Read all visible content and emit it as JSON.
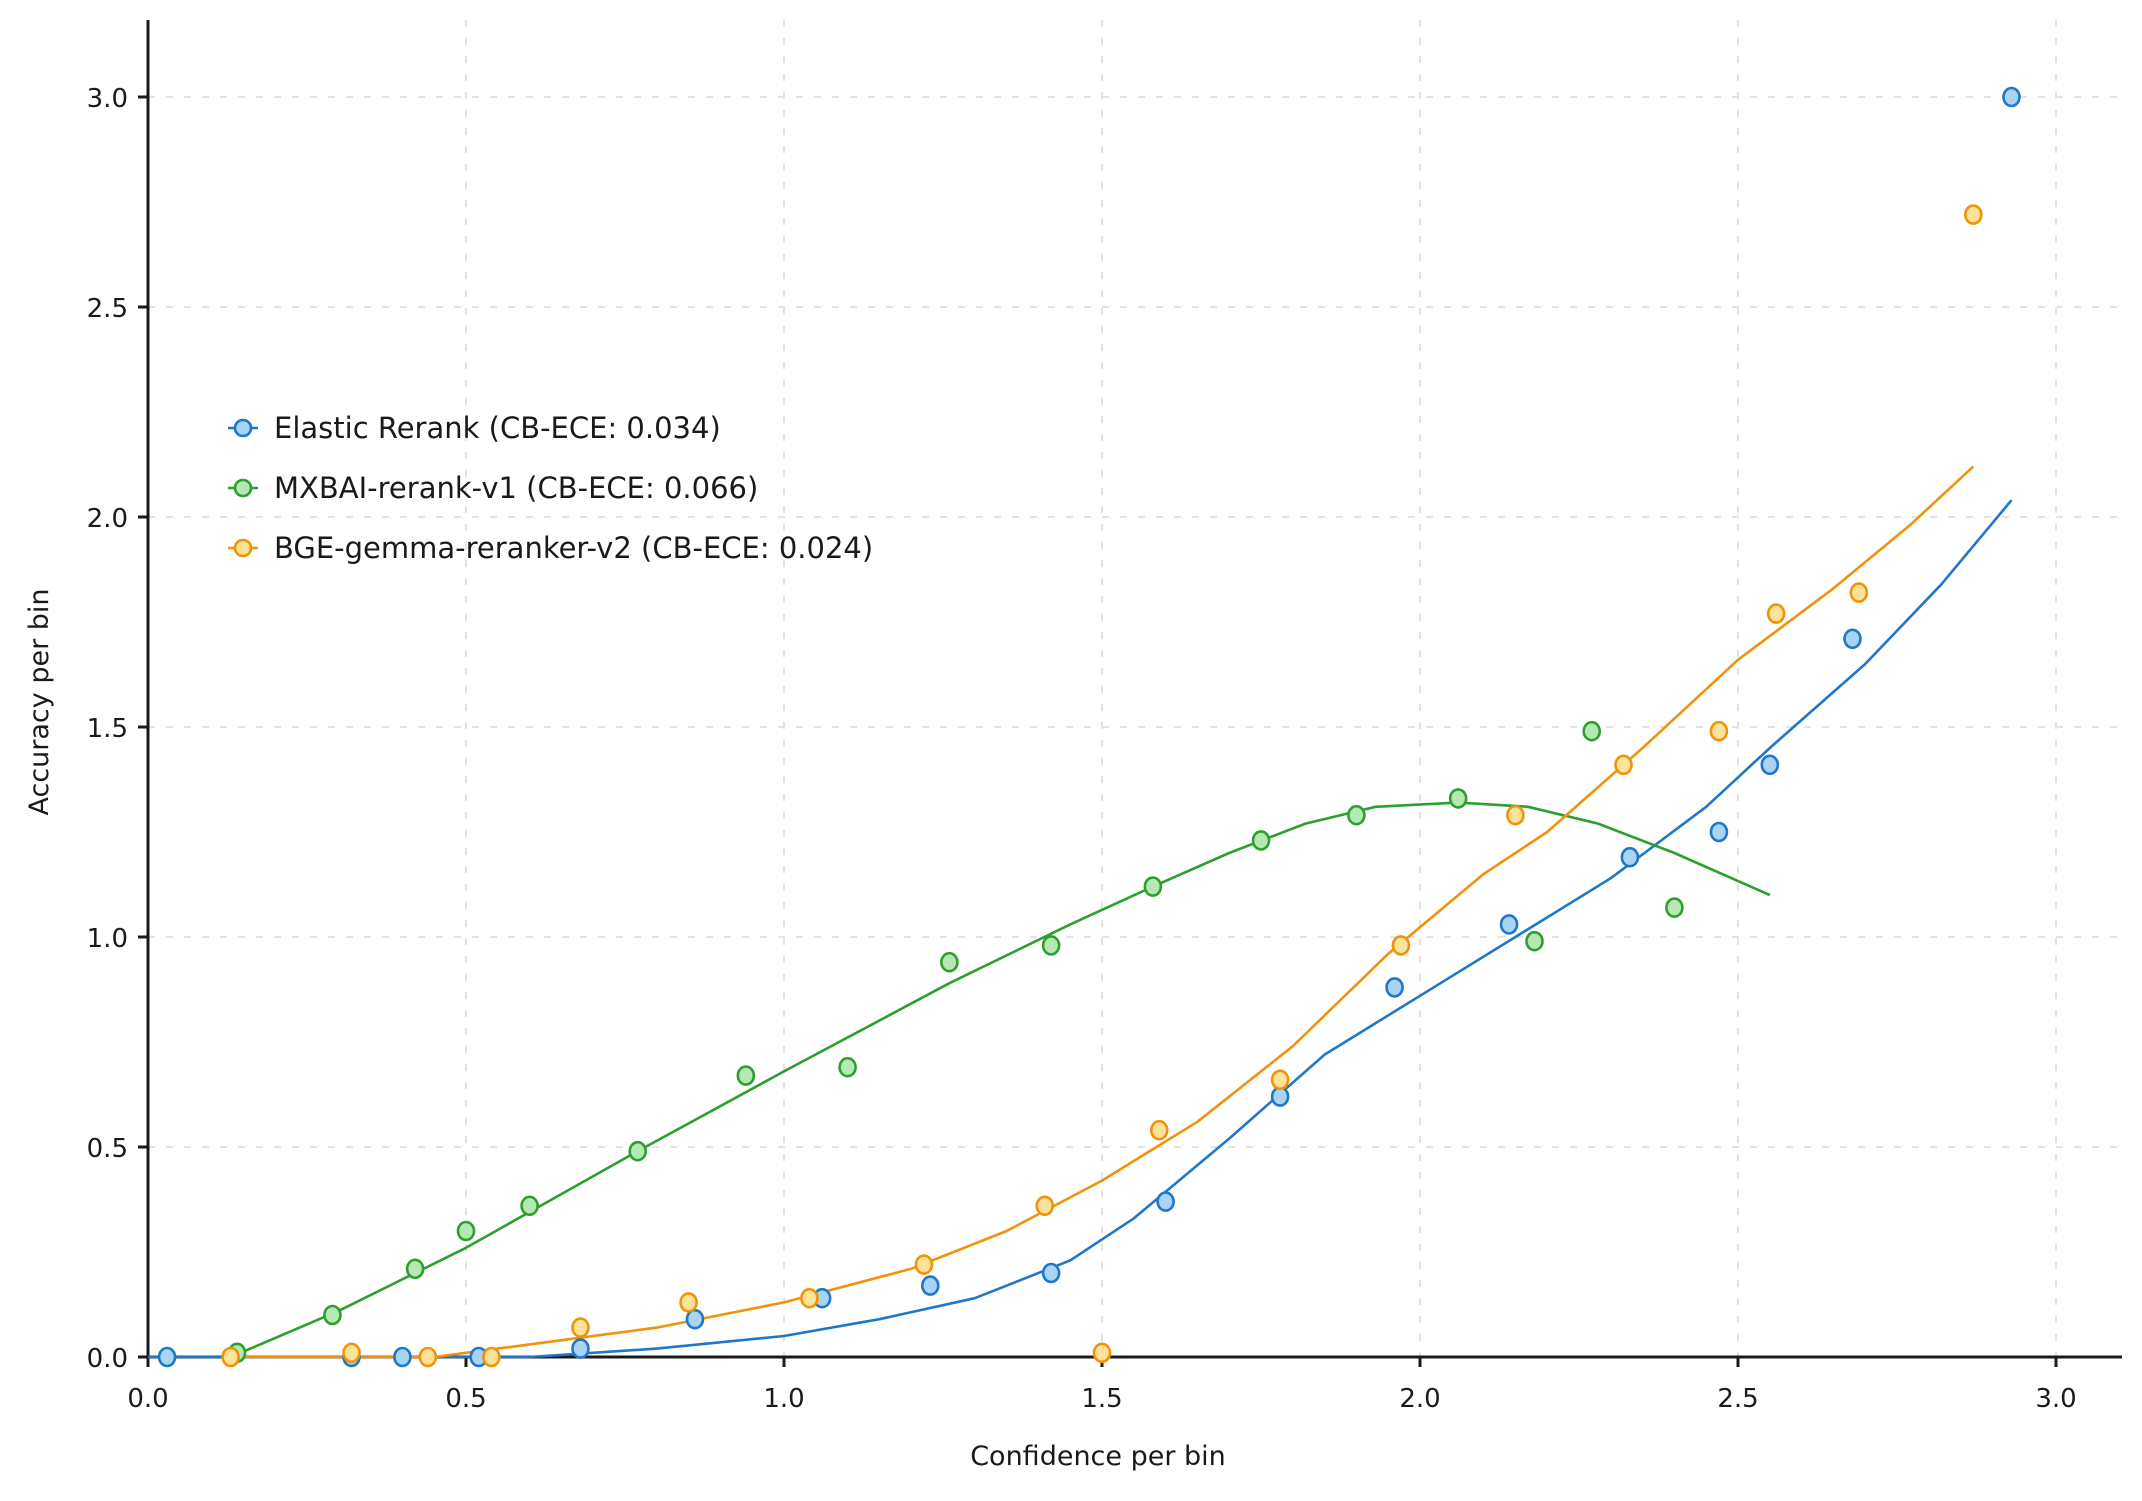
{
  "chart_data": {
    "type": "line",
    "title": "",
    "xlabel": "Confidence per bin",
    "ylabel": "Accuracy per bin",
    "xlim": [
      0.0,
      3.1
    ],
    "ylim": [
      0.0,
      3.18
    ],
    "xticks": [
      "0.0",
      "0.5",
      "1.0",
      "1.5",
      "2.0",
      "2.5",
      "3.0"
    ],
    "yticks": [
      "0.0",
      "0.5",
      "1.0",
      "1.5",
      "2.0",
      "2.5",
      "3.0"
    ],
    "grid": true,
    "legend_position": "upper-left",
    "series": [
      {
        "name": "Elastic Rerank (CB-ECE: 0.034)",
        "color": "#1f77c8",
        "fill": "#a8d4f5",
        "points": [
          [
            0.03,
            0.0
          ],
          [
            0.32,
            0.0
          ],
          [
            0.4,
            0.0
          ],
          [
            0.52,
            0.0
          ],
          [
            0.68,
            0.02
          ],
          [
            0.86,
            0.09
          ],
          [
            1.06,
            0.14
          ],
          [
            1.23,
            0.17
          ],
          [
            1.42,
            0.2
          ],
          [
            1.6,
            0.37
          ],
          [
            1.78,
            0.62
          ],
          [
            1.96,
            0.88
          ],
          [
            2.14,
            1.03
          ],
          [
            2.33,
            1.19
          ],
          [
            2.47,
            1.25
          ],
          [
            2.55,
            1.41
          ],
          [
            2.68,
            1.71
          ],
          [
            2.93,
            3.0
          ]
        ],
        "fit_line": [
          [
            0.0,
            0.0
          ],
          [
            0.6,
            0.0
          ],
          [
            0.8,
            0.02
          ],
          [
            1.0,
            0.05
          ],
          [
            1.15,
            0.09
          ],
          [
            1.3,
            0.14
          ],
          [
            1.45,
            0.23
          ],
          [
            1.55,
            0.33
          ],
          [
            1.7,
            0.52
          ],
          [
            1.85,
            0.72
          ],
          [
            2.0,
            0.86
          ],
          [
            2.15,
            1.0
          ],
          [
            2.3,
            1.14
          ],
          [
            2.45,
            1.31
          ],
          [
            2.55,
            1.45
          ],
          [
            2.7,
            1.65
          ],
          [
            2.82,
            1.84
          ],
          [
            2.93,
            2.04
          ]
        ]
      },
      {
        "name": "MXBAI-rerank-v1 (CB-ECE: 0.066)",
        "color": "#2ca02c",
        "fill": "#b5e8b5",
        "points": [
          [
            0.14,
            0.01
          ],
          [
            0.29,
            0.1
          ],
          [
            0.42,
            0.21
          ],
          [
            0.5,
            0.3
          ],
          [
            0.6,
            0.36
          ],
          [
            0.77,
            0.49
          ],
          [
            0.94,
            0.67
          ],
          [
            1.1,
            0.69
          ],
          [
            1.26,
            0.94
          ],
          [
            1.42,
            0.98
          ],
          [
            1.58,
            1.12
          ],
          [
            1.75,
            1.23
          ],
          [
            1.9,
            1.29
          ],
          [
            2.06,
            1.33
          ],
          [
            2.18,
            0.99
          ],
          [
            2.27,
            1.49
          ],
          [
            2.4,
            1.07
          ]
        ],
        "fit_line": [
          [
            0.13,
            0.0
          ],
          [
            0.3,
            0.11
          ],
          [
            0.5,
            0.26
          ],
          [
            0.77,
            0.49
          ],
          [
            1.0,
            0.68
          ],
          [
            1.26,
            0.89
          ],
          [
            1.45,
            1.03
          ],
          [
            1.58,
            1.12
          ],
          [
            1.7,
            1.2
          ],
          [
            1.82,
            1.27
          ],
          [
            1.93,
            1.31
          ],
          [
            2.06,
            1.32
          ],
          [
            2.17,
            1.31
          ],
          [
            2.28,
            1.27
          ],
          [
            2.4,
            1.2
          ],
          [
            2.55,
            1.1
          ]
        ]
      },
      {
        "name": "BGE-gemma-reranker-v2 (CB-ECE: 0.024)",
        "color": "#f0920a",
        "fill": "#fde29a",
        "points": [
          [
            0.13,
            0.0
          ],
          [
            0.32,
            0.01
          ],
          [
            0.44,
            0.0
          ],
          [
            0.54,
            0.0
          ],
          [
            0.68,
            0.07
          ],
          [
            0.85,
            0.13
          ],
          [
            1.04,
            0.14
          ],
          [
            1.22,
            0.22
          ],
          [
            1.41,
            0.36
          ],
          [
            1.5,
            0.01
          ],
          [
            1.59,
            0.54
          ],
          [
            1.78,
            0.66
          ],
          [
            1.97,
            0.98
          ],
          [
            2.15,
            1.29
          ],
          [
            2.32,
            1.41
          ],
          [
            2.47,
            1.49
          ],
          [
            2.56,
            1.77
          ],
          [
            2.69,
            1.82
          ],
          [
            2.87,
            2.72
          ]
        ],
        "fit_line": [
          [
            0.13,
            0.0
          ],
          [
            0.45,
            0.0
          ],
          [
            0.6,
            0.03
          ],
          [
            0.8,
            0.07
          ],
          [
            1.0,
            0.13
          ],
          [
            1.2,
            0.21
          ],
          [
            1.35,
            0.3
          ],
          [
            1.5,
            0.42
          ],
          [
            1.65,
            0.56
          ],
          [
            1.8,
            0.74
          ],
          [
            1.95,
            0.96
          ],
          [
            2.1,
            1.15
          ],
          [
            2.2,
            1.25
          ],
          [
            2.35,
            1.45
          ],
          [
            2.5,
            1.66
          ],
          [
            2.65,
            1.83
          ],
          [
            2.77,
            1.98
          ],
          [
            2.87,
            2.12
          ]
        ]
      }
    ]
  }
}
